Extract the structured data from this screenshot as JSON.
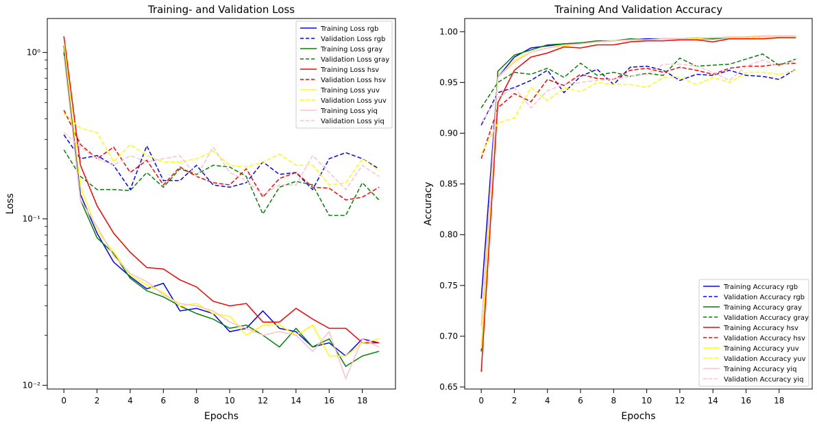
{
  "chart_data": [
    {
      "type": "line",
      "title": "Training- and Validation Loss",
      "xlabel": "Epochs",
      "ylabel": "Loss",
      "yscale": "log",
      "xlim": [
        -1,
        20
      ],
      "ylim": [
        0.0095,
        1.6
      ],
      "x_ticks": [
        0,
        2,
        4,
        6,
        8,
        10,
        12,
        14,
        16,
        18
      ],
      "y_ticks": [
        {
          "value": 0.01,
          "label": "10⁻²"
        },
        {
          "value": 0.1,
          "label": "10⁻¹"
        },
        {
          "value": 1,
          "label": "10⁰"
        }
      ],
      "legend_position": "top-right",
      "grid": false,
      "x": [
        0,
        1,
        2,
        3,
        4,
        5,
        6,
        7,
        8,
        9,
        10,
        11,
        12,
        13,
        14,
        15,
        16,
        17,
        18,
        19
      ],
      "series": [
        {
          "name": "Training Loss rgb",
          "color": "#0000ff",
          "dash": "solid",
          "values": [
            1.1,
            0.14,
            0.082,
            0.055,
            0.045,
            0.038,
            0.041,
            0.028,
            0.029,
            0.027,
            0.021,
            0.022,
            0.028,
            0.022,
            0.021,
            0.017,
            0.018,
            0.015,
            0.019,
            0.018
          ]
        },
        {
          "name": "Validation Loss rgb",
          "color": "#0000ff",
          "dash": "dashed",
          "values": [
            0.32,
            0.23,
            0.24,
            0.21,
            0.15,
            0.275,
            0.17,
            0.17,
            0.21,
            0.16,
            0.155,
            0.165,
            0.22,
            0.185,
            0.19,
            0.15,
            0.23,
            0.25,
            0.23,
            0.2
          ]
        },
        {
          "name": "Training Loss gray",
          "color": "#008000",
          "dash": "solid",
          "values": [
            1.0,
            0.13,
            0.077,
            0.062,
            0.044,
            0.037,
            0.034,
            0.03,
            0.027,
            0.025,
            0.022,
            0.023,
            0.02,
            0.017,
            0.022,
            0.017,
            0.019,
            0.013,
            0.015,
            0.016
          ]
        },
        {
          "name": "Validation Loss gray",
          "color": "#008000",
          "dash": "dashed",
          "values": [
            0.26,
            0.18,
            0.15,
            0.15,
            0.148,
            0.19,
            0.155,
            0.2,
            0.185,
            0.21,
            0.205,
            0.18,
            0.107,
            0.155,
            0.168,
            0.16,
            0.105,
            0.105,
            0.165,
            0.13
          ]
        },
        {
          "name": "Training Loss hsv",
          "color": "#ff0000",
          "dash": "solid",
          "values": [
            1.25,
            0.21,
            0.12,
            0.082,
            0.063,
            0.051,
            0.05,
            0.043,
            0.039,
            0.032,
            0.03,
            0.031,
            0.024,
            0.024,
            0.029,
            0.025,
            0.022,
            0.022,
            0.018,
            0.018
          ]
        },
        {
          "name": "Validation Loss hsv",
          "color": "#ff0000",
          "dash": "dashed",
          "values": [
            0.45,
            0.28,
            0.23,
            0.27,
            0.19,
            0.225,
            0.16,
            0.205,
            0.18,
            0.165,
            0.16,
            0.2,
            0.135,
            0.175,
            0.19,
            0.155,
            0.153,
            0.13,
            0.135,
            0.155
          ]
        },
        {
          "name": "Training Loss yuv",
          "color": "#ffff00",
          "dash": "solid",
          "values": [
            1.15,
            0.155,
            0.085,
            0.063,
            0.046,
            0.04,
            0.036,
            0.03,
            0.031,
            0.027,
            0.026,
            0.02,
            0.023,
            0.023,
            0.02,
            0.023,
            0.015,
            0.015,
            0.018,
            0.019
          ]
        },
        {
          "name": "Validation Loss yuv",
          "color": "#ffff00",
          "dash": "dashed",
          "values": [
            0.43,
            0.35,
            0.33,
            0.22,
            0.28,
            0.24,
            0.22,
            0.22,
            0.23,
            0.255,
            0.21,
            0.205,
            0.22,
            0.245,
            0.21,
            0.21,
            0.16,
            0.165,
            0.23,
            0.195
          ]
        },
        {
          "name": "Training Loss yiq",
          "color": "#ffc0cb",
          "dash": "solid",
          "values": [
            0.95,
            0.13,
            0.09,
            0.06,
            0.047,
            0.042,
            0.035,
            0.031,
            0.03,
            0.028,
            0.024,
            0.022,
            0.02,
            0.021,
            0.02,
            0.016,
            0.021,
            0.011,
            0.019,
            0.017
          ]
        },
        {
          "name": "Validation Loss yiq",
          "color": "#ffc0cb",
          "dash": "dashed",
          "values": [
            0.33,
            0.27,
            0.23,
            0.21,
            0.24,
            0.22,
            0.23,
            0.24,
            0.18,
            0.27,
            0.19,
            0.17,
            0.14,
            0.16,
            0.16,
            0.24,
            0.19,
            0.15,
            0.21,
            0.18
          ]
        }
      ]
    },
    {
      "type": "line",
      "title": "Training And Validation Accuracy",
      "xlabel": "Epochs",
      "ylabel": "Accuracy",
      "yscale": "linear",
      "xlim": [
        -1,
        20
      ],
      "ylim": [
        0.648,
        1.013
      ],
      "x_ticks": [
        0,
        2,
        4,
        6,
        8,
        10,
        12,
        14,
        16,
        18
      ],
      "y_ticks": [
        {
          "value": 0.65,
          "label": "0.65"
        },
        {
          "value": 0.7,
          "label": "0.70"
        },
        {
          "value": 0.75,
          "label": "0.75"
        },
        {
          "value": 0.8,
          "label": "0.80"
        },
        {
          "value": 0.85,
          "label": "0.85"
        },
        {
          "value": 0.9,
          "label": "0.90"
        },
        {
          "value": 0.95,
          "label": "0.95"
        },
        {
          "value": 1.0,
          "label": "1.00"
        }
      ],
      "legend_position": "bottom-right",
      "grid": false,
      "x": [
        0,
        1,
        2,
        3,
        4,
        5,
        6,
        7,
        8,
        9,
        10,
        11,
        12,
        13,
        14,
        15,
        16,
        17,
        18,
        19
      ],
      "series": [
        {
          "name": "Training Accuracy rgb",
          "color": "#0000ff",
          "dash": "solid",
          "values": [
            0.737,
            0.955,
            0.975,
            0.984,
            0.986,
            0.988,
            0.989,
            0.99,
            0.991,
            0.992,
            0.993,
            0.993,
            0.993,
            0.993,
            0.993,
            0.994,
            0.994,
            0.995,
            0.995,
            0.995
          ]
        },
        {
          "name": "Validation Accuracy rgb",
          "color": "#0000ff",
          "dash": "dashed",
          "values": [
            0.908,
            0.94,
            0.945,
            0.952,
            0.962,
            0.94,
            0.956,
            0.963,
            0.948,
            0.965,
            0.966,
            0.962,
            0.952,
            0.958,
            0.957,
            0.962,
            0.957,
            0.956,
            0.953,
            0.963
          ]
        },
        {
          "name": "Training Accuracy gray",
          "color": "#008000",
          "dash": "solid",
          "values": [
            0.685,
            0.961,
            0.977,
            0.982,
            0.987,
            0.988,
            0.989,
            0.991,
            0.991,
            0.993,
            0.992,
            0.993,
            0.993,
            0.994,
            0.993,
            0.994,
            0.994,
            0.995,
            0.995,
            0.995
          ]
        },
        {
          "name": "Validation Accuracy gray",
          "color": "#008000",
          "dash": "dashed",
          "values": [
            0.925,
            0.95,
            0.96,
            0.958,
            0.964,
            0.955,
            0.969,
            0.957,
            0.96,
            0.956,
            0.959,
            0.957,
            0.974,
            0.966,
            0.967,
            0.968,
            0.973,
            0.978,
            0.967,
            0.973
          ]
        },
        {
          "name": "Training Accuracy hsv",
          "color": "#ff0000",
          "dash": "solid",
          "values": [
            0.665,
            0.93,
            0.962,
            0.975,
            0.979,
            0.985,
            0.984,
            0.987,
            0.987,
            0.99,
            0.991,
            0.991,
            0.992,
            0.992,
            0.99,
            0.993,
            0.993,
            0.993,
            0.994,
            0.994
          ]
        },
        {
          "name": "Validation Accuracy hsv",
          "color": "#ff0000",
          "dash": "dashed",
          "values": [
            0.875,
            0.925,
            0.939,
            0.931,
            0.953,
            0.947,
            0.958,
            0.954,
            0.953,
            0.962,
            0.964,
            0.96,
            0.965,
            0.962,
            0.958,
            0.964,
            0.966,
            0.966,
            0.968,
            0.969
          ]
        },
        {
          "name": "Training Accuracy yuv",
          "color": "#ffff00",
          "dash": "solid",
          "values": [
            0.688,
            0.955,
            0.972,
            0.98,
            0.984,
            0.986,
            0.988,
            0.99,
            0.991,
            0.992,
            0.992,
            0.993,
            0.993,
            0.993,
            0.994,
            0.994,
            0.994,
            0.995,
            0.995,
            0.995
          ]
        },
        {
          "name": "Validation Accuracy yuv",
          "color": "#ffff00",
          "dash": "dashed",
          "values": [
            0.88,
            0.91,
            0.915,
            0.945,
            0.932,
            0.945,
            0.941,
            0.95,
            0.948,
            0.948,
            0.945,
            0.955,
            0.955,
            0.948,
            0.955,
            0.95,
            0.96,
            0.96,
            0.958,
            0.962
          ]
        },
        {
          "name": "Training Accuracy yiq",
          "color": "#ffc0cb",
          "dash": "solid",
          "values": [
            0.71,
            0.955,
            0.97,
            0.98,
            0.984,
            0.987,
            0.988,
            0.99,
            0.991,
            0.992,
            0.992,
            0.993,
            0.993,
            0.994,
            0.994,
            0.995,
            0.995,
            0.996,
            0.996,
            0.996
          ]
        },
        {
          "name": "Validation Accuracy yiq",
          "color": "#ffc0cb",
          "dash": "dashed",
          "values": [
            0.91,
            0.935,
            0.945,
            0.925,
            0.942,
            0.948,
            0.95,
            0.952,
            0.953,
            0.956,
            0.958,
            0.968,
            0.968,
            0.966,
            0.96,
            0.952,
            0.966,
            0.972,
            0.966,
            0.972
          ]
        }
      ]
    }
  ]
}
